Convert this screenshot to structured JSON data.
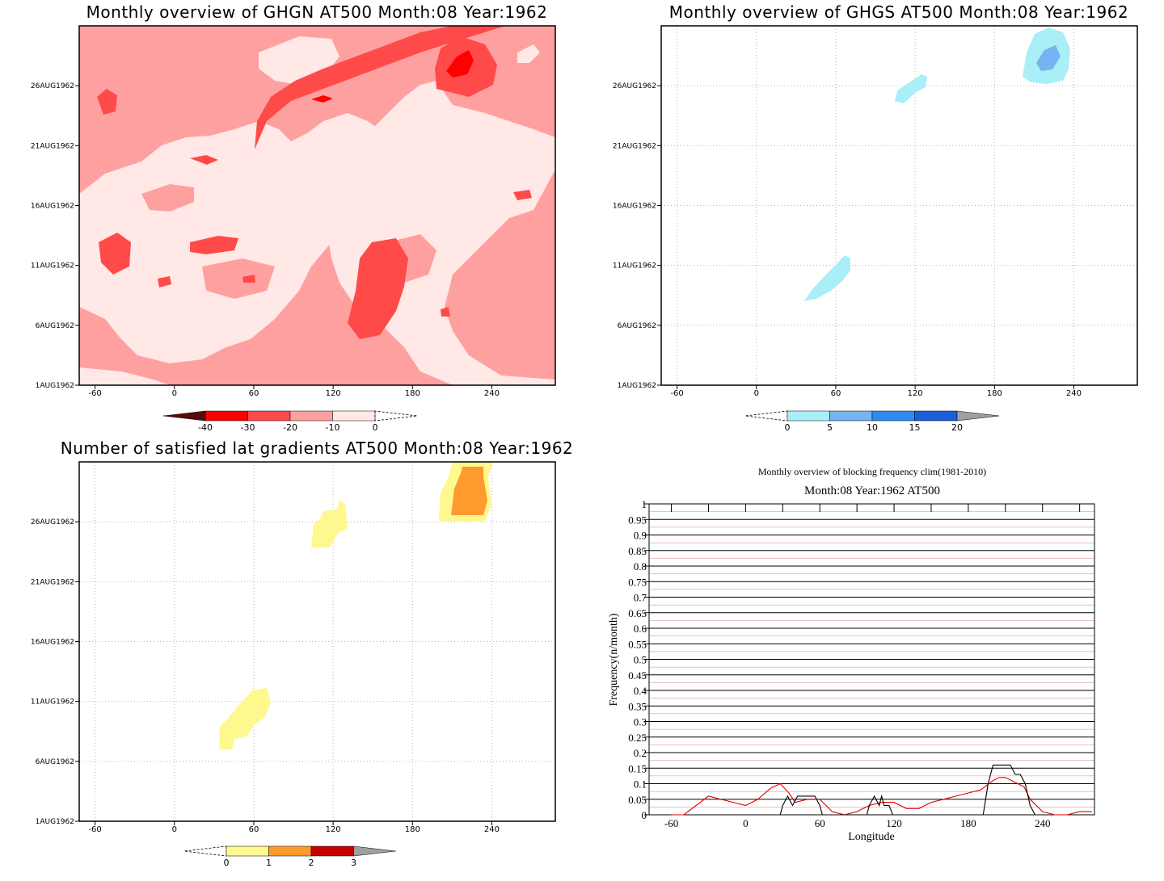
{
  "panels": {
    "ghgn": {
      "title": "Monthly overview of GHGN AT500 Month:08 Year:1962",
      "y_ticks": [
        "1AUG1962",
        "6AUG1962",
        "11AUG1962",
        "16AUG1962",
        "21AUG1962",
        "26AUG1962"
      ],
      "x_ticks": [
        "-60",
        "0",
        "60",
        "120",
        "180",
        "240"
      ],
      "colorbar": {
        "labels": [
          "-40",
          "-30",
          "-20",
          "-10",
          "0"
        ],
        "colors": [
          "#5a0a0a",
          "#ff0000",
          "#ff4a4a",
          "#ffa0a0",
          "#ffe8e6"
        ]
      }
    },
    "ghgs": {
      "title": "Monthly overview of GHGS AT500 Month:08 Year:1962",
      "y_ticks": [
        "1AUG1962",
        "6AUG1962",
        "11AUG1962",
        "16AUG1962",
        "21AUG1962",
        "26AUG1962"
      ],
      "x_ticks": [
        "-60",
        "0",
        "60",
        "120",
        "180",
        "240"
      ],
      "colorbar": {
        "labels": [
          "0",
          "5",
          "10",
          "15",
          "20"
        ],
        "colors": [
          "#aaeef8",
          "#74b4f0",
          "#2e8cf0",
          "#1c5ed8",
          "#a0a0a0"
        ]
      }
    },
    "lat_gradients": {
      "title": "Number of satisfied lat gradients AT500 Month:08 Year:1962",
      "y_ticks": [
        "1AUG1962",
        "6AUG1962",
        "11AUG1962",
        "16AUG1962",
        "21AUG1962",
        "26AUG1962"
      ],
      "x_ticks": [
        "-60",
        "0",
        "60",
        "120",
        "180",
        "240"
      ],
      "colorbar": {
        "labels": [
          "0",
          "1",
          "2",
          "3"
        ],
        "colors": [
          "#fff88e",
          "#ff9a2e",
          "#c80000",
          "#a0a0a0"
        ]
      }
    },
    "blocking_frequency": {
      "title": "Monthly overview of blocking frequency clim(1981-2010)",
      "subtitle": "Month:08 Year:1962  AT500",
      "ylabel": "Frequency(n/month)",
      "xlabel": "Longitude",
      "y_ticks": [
        "0",
        "0.05",
        "0.1",
        "0.15",
        "0.2",
        "0.25",
        "0.3",
        "0.35",
        "0.4",
        "0.45",
        "0.5",
        "0.55",
        "0.6",
        "0.65",
        "0.7",
        "0.75",
        "0.8",
        "0.85",
        "0.9",
        "0.95",
        "1"
      ],
      "x_ticks": [
        "-60",
        "0",
        "60",
        "120",
        "180",
        "240"
      ]
    }
  },
  "chart_data": [
    {
      "type": "heatmap",
      "title": "Monthly overview of GHGN AT500 Month:08 Year:1962",
      "x_range": [
        -72,
        288
      ],
      "y_range": [
        "1AUG1962",
        "31AUG1962"
      ],
      "levels": [
        -40,
        -30,
        -20,
        -10,
        0
      ],
      "dominant_values": "mostly -10 to -20 with -20 to -30 streaks, minimum below -30 near lon 210 on 28AUG1962"
    },
    {
      "type": "heatmap",
      "title": "Monthly overview of GHGS AT500 Month:08 Year:1962",
      "x_range": [
        -72,
        288
      ],
      "y_range": [
        "1AUG1962",
        "31AUG1962"
      ],
      "levels": [
        0,
        5,
        10,
        15,
        20
      ],
      "patches": [
        {
          "lon": [
            30,
            60
          ],
          "date": [
            "8AUG1962",
            "12AUG1962"
          ],
          "level": "0-5"
        },
        {
          "lon": [
            100,
            120
          ],
          "date": [
            "25AUG1962",
            "27AUG1962"
          ],
          "level": "0-5"
        },
        {
          "lon": [
            195,
            230
          ],
          "date": [
            "26AUG1962",
            "31AUG1962"
          ],
          "level": "0-10"
        }
      ]
    },
    {
      "type": "heatmap",
      "title": "Number of satisfied lat gradients AT500 Month:08 Year:1962",
      "x_range": [
        -72,
        288
      ],
      "y_range": [
        "1AUG1962",
        "31AUG1962"
      ],
      "levels": [
        0,
        1,
        2,
        3
      ],
      "patches": [
        {
          "lon": [
            25,
            65
          ],
          "date": [
            "7AUG1962",
            "12AUG1962"
          ],
          "level": "0-1"
        },
        {
          "lon": [
            95,
            120
          ],
          "date": [
            "24AUG1962",
            "27AUG1962"
          ],
          "level": "0-1"
        },
        {
          "lon": [
            190,
            230
          ],
          "date": [
            "27AUG1962",
            "31AUG1962"
          ],
          "level": "1-2"
        }
      ]
    },
    {
      "type": "line",
      "title": "Monthly overview of blocking frequency clim(1981-2010)",
      "subtitle": "Month:08 Year:1962  AT500",
      "xlabel": "Longitude",
      "ylabel": "Frequency(n/month)",
      "xlim": [
        -78,
        282
      ],
      "ylim": [
        0,
        1
      ],
      "series": [
        {
          "color": "#e00000",
          "x": [
            -60,
            -50,
            -40,
            -30,
            -20,
            -10,
            0,
            10,
            20,
            28,
            35,
            40,
            50,
            60,
            70,
            80,
            90,
            100,
            110,
            120,
            130,
            140,
            150,
            160,
            170,
            180,
            190,
            200,
            205,
            210,
            215,
            220,
            225,
            230,
            240,
            250,
            260,
            270,
            280
          ],
          "y": [
            0.0,
            0.0,
            0.03,
            0.06,
            0.05,
            0.04,
            0.03,
            0.05,
            0.085,
            0.1,
            0.07,
            0.04,
            0.05,
            0.05,
            0.01,
            0.0,
            0.01,
            0.03,
            0.04,
            0.04,
            0.02,
            0.02,
            0.04,
            0.05,
            0.06,
            0.07,
            0.08,
            0.11,
            0.12,
            0.12,
            0.11,
            0.1,
            0.09,
            0.05,
            0.01,
            0.0,
            0.0,
            0.01,
            0.01
          ]
        },
        {
          "color": "#000000",
          "x": [
            28,
            30,
            34,
            38,
            42,
            46,
            56,
            60,
            62,
            98,
            100,
            104,
            108,
            110,
            112,
            116,
            119,
            120,
            192,
            196,
            200,
            214,
            218,
            222,
            226,
            230,
            234
          ],
          "y": [
            0.0,
            0.03,
            0.06,
            0.03,
            0.06,
            0.06,
            0.06,
            0.03,
            0.0,
            0.0,
            0.03,
            0.06,
            0.03,
            0.06,
            0.03,
            0.03,
            0.0,
            0.0,
            0.0,
            0.1,
            0.16,
            0.16,
            0.13,
            0.13,
            0.1,
            0.03,
            0.0
          ]
        }
      ]
    }
  ]
}
